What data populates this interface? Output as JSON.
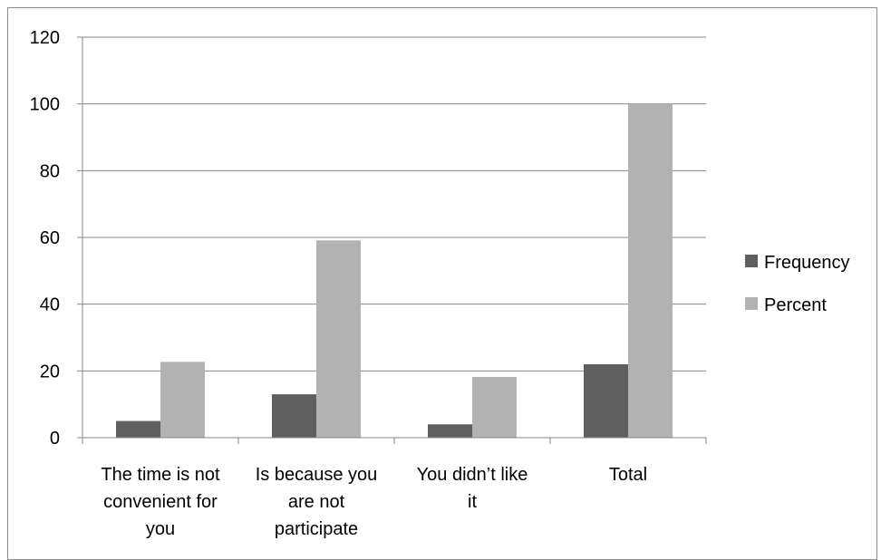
{
  "chart_data": {
    "type": "bar",
    "categories": [
      [
        "The time is not",
        "convenient for",
        "you"
      ],
      [
        "Is because you",
        "are not",
        "participate"
      ],
      [
        "You didn’t like",
        "it"
      ],
      [
        "Total"
      ]
    ],
    "series": [
      {
        "name": "Frequency",
        "values": [
          5,
          13,
          4,
          22
        ],
        "color": "#5f5f5f"
      },
      {
        "name": "Percent",
        "values": [
          22.7,
          59.1,
          18.2,
          100
        ],
        "color": "#b2b2b2"
      }
    ],
    "ylim": [
      0,
      120
    ],
    "yticks": [
      0,
      20,
      40,
      60,
      80,
      100,
      120
    ],
    "grid": true,
    "legend_position": "right"
  }
}
